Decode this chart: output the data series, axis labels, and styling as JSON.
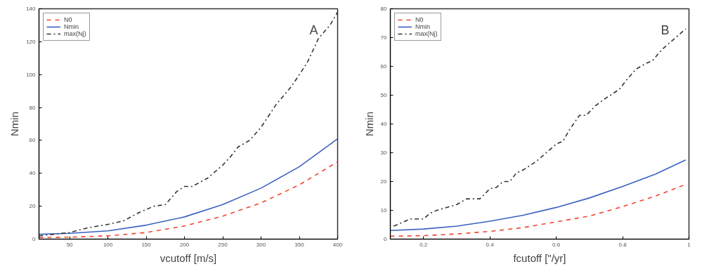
{
  "chart_data": [
    {
      "type": "line",
      "xlabel": "vcutoff [m/s]",
      "ylabel": "Nmin",
      "annotations": [
        "A"
      ],
      "xlim": [
        10,
        400
      ],
      "ylim": [
        0,
        140
      ],
      "xticks": [
        50,
        100,
        150,
        200,
        250,
        300,
        350,
        400
      ],
      "yticks": [
        0,
        20,
        40,
        60,
        80,
        100,
        120,
        140
      ],
      "grid": false,
      "legend": "top left",
      "series": [
        {
          "name": "N0",
          "color": "#f0442c",
          "line_style": "dashed",
          "x": [
            10,
            50,
            100,
            150,
            200,
            250,
            300,
            350,
            400
          ],
          "values": [
            1,
            1.2,
            2,
            4,
            8,
            14,
            22,
            33,
            47
          ]
        },
        {
          "name": "Nmin",
          "color": "#3a62c0",
          "line_style": "solid",
          "x": [
            10,
            50,
            100,
            150,
            200,
            250,
            300,
            350,
            400
          ],
          "values": [
            3,
            3.5,
            5,
            8.5,
            13.5,
            21,
            31,
            44,
            61
          ]
        },
        {
          "name": "max(Nj)",
          "color": "#333333",
          "line_style": "dashdot",
          "x": [
            10,
            30,
            50,
            75,
            100,
            120,
            140,
            160,
            175,
            190,
            200,
            210,
            230,
            250,
            260,
            270,
            285,
            300,
            320,
            340,
            360,
            375,
            390,
            400
          ],
          "values": [
            2,
            3,
            4,
            7,
            9,
            11,
            16,
            20,
            21,
            29,
            32,
            32,
            37,
            45,
            50,
            56,
            60,
            68,
            82,
            93,
            107,
            122,
            130,
            138
          ]
        }
      ]
    },
    {
      "type": "line",
      "xlabel": "fcutoff [\"/yr]",
      "ylabel": "Nmin",
      "annotations": [
        "B"
      ],
      "xlim": [
        0.1,
        1
      ],
      "ylim": [
        0,
        80
      ],
      "xticks": [
        0.2,
        0.4,
        0.6,
        0.8,
        1
      ],
      "yticks": [
        0,
        10,
        20,
        30,
        40,
        50,
        60,
        70,
        80
      ],
      "grid": false,
      "legend": "top left",
      "series": [
        {
          "name": "N0",
          "color": "#f0442c",
          "line_style": "dashed",
          "x": [
            0.1,
            0.2,
            0.3,
            0.4,
            0.5,
            0.6,
            0.7,
            0.8,
            0.9,
            0.99
          ],
          "values": [
            1,
            1.2,
            1.8,
            2.7,
            4,
            6,
            8,
            11.3,
            15,
            19
          ]
        },
        {
          "name": "Nmin",
          "color": "#3a62c0",
          "line_style": "solid",
          "x": [
            0.1,
            0.2,
            0.3,
            0.4,
            0.5,
            0.6,
            0.7,
            0.8,
            0.9,
            0.99
          ],
          "values": [
            3,
            3.5,
            4.5,
            6.2,
            8.3,
            11,
            14.3,
            18.3,
            22.6,
            27.5
          ]
        },
        {
          "name": "max(Nj)",
          "color": "#333333",
          "line_style": "dashdot",
          "x": [
            0.11,
            0.14,
            0.16,
            0.2,
            0.22,
            0.24,
            0.27,
            0.3,
            0.33,
            0.37,
            0.4,
            0.42,
            0.44,
            0.46,
            0.48,
            0.5,
            0.54,
            0.58,
            0.6,
            0.62,
            0.64,
            0.67,
            0.69,
            0.72,
            0.75,
            0.79,
            0.81,
            0.84,
            0.87,
            0.89,
            0.92,
            0.95,
            0.99
          ],
          "values": [
            4.5,
            6,
            7,
            7,
            9,
            10,
            11,
            12,
            14,
            14,
            17.5,
            18,
            20,
            20,
            23,
            24,
            27,
            31,
            33,
            34,
            38,
            43,
            43,
            46.5,
            49,
            52,
            55,
            59,
            61,
            62,
            66,
            69,
            73
          ]
        }
      ]
    }
  ]
}
